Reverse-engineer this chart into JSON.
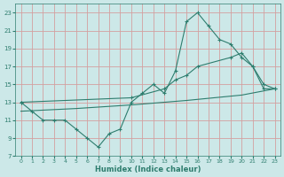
{
  "line1_x": [
    0,
    1,
    2,
    3,
    4,
    5,
    6,
    7,
    8,
    9,
    10,
    11,
    12,
    13,
    14,
    15,
    16,
    17,
    18,
    19,
    20,
    21,
    22,
    23
  ],
  "line1_y": [
    13,
    12,
    11,
    11,
    11,
    10,
    9,
    8,
    9.5,
    10,
    13,
    14,
    15,
    14,
    16.5,
    22,
    23,
    21.5,
    20,
    19.5,
    18,
    17,
    14.5,
    14.5
  ],
  "line2_x": [
    0,
    10,
    13,
    14,
    15,
    16,
    19,
    20,
    21,
    22,
    23
  ],
  "line2_y": [
    13,
    13.5,
    14.5,
    15.5,
    16,
    17,
    18,
    18.5,
    17,
    15,
    14.5
  ],
  "line3_x": [
    0,
    5,
    10,
    15,
    20,
    23
  ],
  "line3_y": [
    12.0,
    12.3,
    12.7,
    13.2,
    13.8,
    14.5
  ],
  "line_color": "#2e7d6e",
  "bg_color": "#cce8e8",
  "grid_color": "#d4a0a0",
  "xlabel": "Humidex (Indice chaleur)",
  "xlim": [
    -0.5,
    23.5
  ],
  "ylim": [
    7,
    24
  ],
  "xticks": [
    0,
    1,
    2,
    3,
    4,
    5,
    6,
    7,
    8,
    9,
    10,
    11,
    12,
    13,
    14,
    15,
    16,
    17,
    18,
    19,
    20,
    21,
    22,
    23
  ],
  "yticks": [
    7,
    9,
    11,
    13,
    15,
    17,
    19,
    21,
    23
  ],
  "marker": "+"
}
